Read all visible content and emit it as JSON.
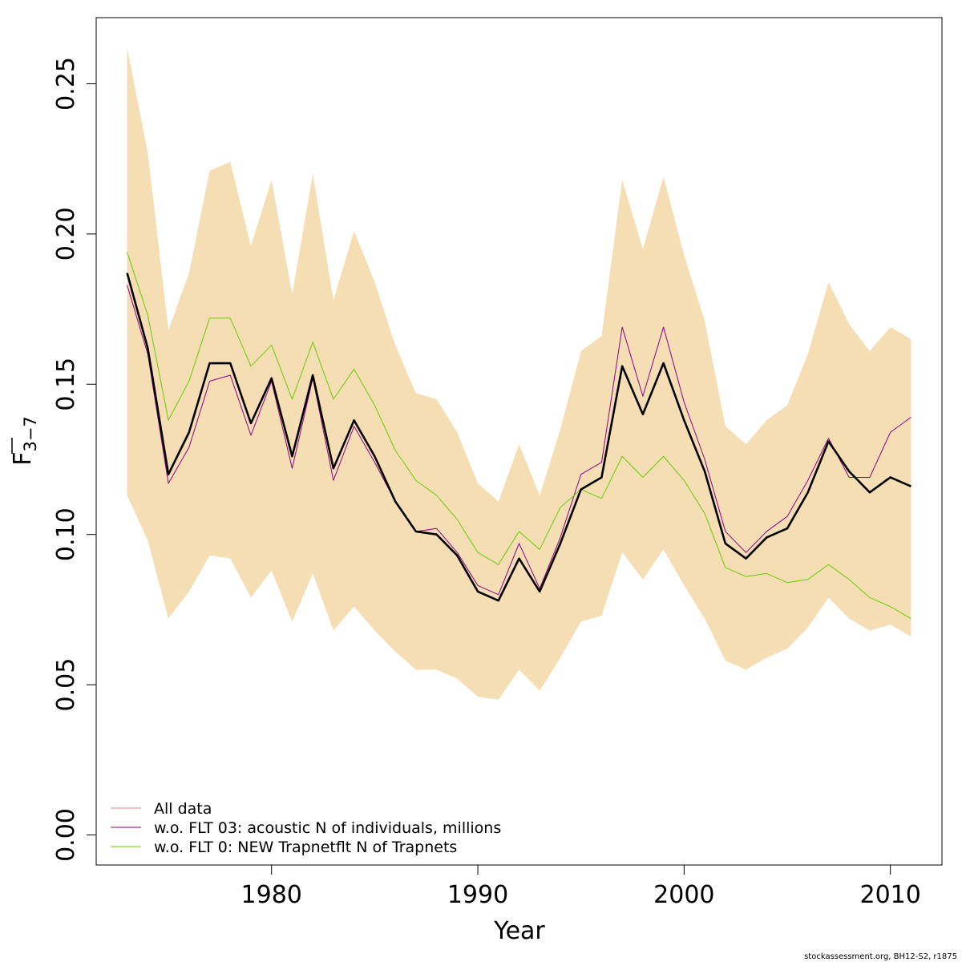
{
  "chart_data": {
    "type": "line",
    "xlabel": "Year",
    "ylabel_main": "F",
    "ylabel_sub": "3−7",
    "xlim": [
      1971.5,
      2012.5
    ],
    "ylim": [
      -0.01,
      0.272
    ],
    "x_ticks": [
      1980,
      1990,
      2000,
      2010
    ],
    "y_ticks": [
      "0.00",
      "0.05",
      "0.10",
      "0.15",
      "0.20",
      "0.25"
    ],
    "grid": false,
    "legend_position": "bottom-left",
    "colors": {
      "band": "#f5deb3",
      "all_data": "#000000",
      "all_data_legend": "#f08080",
      "flt03": "#8b008b",
      "flt0": "#66cc00"
    },
    "x": [
      1973,
      1974,
      1975,
      1976,
      1977,
      1978,
      1979,
      1980,
      1981,
      1982,
      1983,
      1984,
      1985,
      1986,
      1987,
      1988,
      1989,
      1990,
      1991,
      1992,
      1993,
      1994,
      1995,
      1996,
      1997,
      1998,
      1999,
      2000,
      2001,
      2002,
      2003,
      2004,
      2005,
      2006,
      2007,
      2008,
      2009,
      2010,
      2011
    ],
    "band_upper": [
      0.262,
      0.227,
      0.168,
      0.187,
      0.221,
      0.224,
      0.196,
      0.218,
      0.18,
      0.22,
      0.178,
      0.201,
      0.184,
      0.163,
      0.147,
      0.145,
      0.134,
      0.117,
      0.111,
      0.13,
      0.113,
      0.135,
      0.161,
      0.166,
      0.218,
      0.195,
      0.219,
      0.193,
      0.171,
      0.136,
      0.13,
      0.138,
      0.143,
      0.16,
      0.184,
      0.17,
      0.161,
      0.169,
      0.165
    ],
    "band_lower": [
      0.113,
      0.098,
      0.072,
      0.081,
      0.093,
      0.092,
      0.079,
      0.088,
      0.071,
      0.087,
      0.068,
      0.076,
      0.068,
      0.061,
      0.055,
      0.055,
      0.052,
      0.046,
      0.045,
      0.055,
      0.048,
      0.059,
      0.071,
      0.073,
      0.094,
      0.085,
      0.095,
      0.083,
      0.072,
      0.058,
      0.055,
      0.059,
      0.062,
      0.069,
      0.079,
      0.072,
      0.068,
      0.07,
      0.066
    ],
    "series": [
      {
        "name": "All data",
        "values": [
          0.187,
          0.162,
          0.12,
          0.134,
          0.157,
          0.157,
          0.137,
          0.152,
          0.126,
          0.153,
          0.122,
          0.138,
          0.126,
          0.111,
          0.101,
          0.1,
          0.093,
          0.081,
          0.078,
          0.092,
          0.081,
          0.097,
          0.115,
          0.119,
          0.156,
          0.14,
          0.157,
          0.138,
          0.121,
          0.097,
          0.092,
          0.099,
          0.102,
          0.114,
          0.131,
          0.121,
          0.114,
          0.119,
          0.116
        ]
      },
      {
        "name": "w.o. FLT 03:   acoustic   N of individuals, millions",
        "values": [
          0.183,
          0.16,
          0.117,
          0.129,
          0.151,
          0.153,
          0.133,
          0.151,
          0.122,
          0.152,
          0.118,
          0.136,
          0.124,
          0.111,
          0.101,
          0.102,
          0.094,
          0.083,
          0.08,
          0.097,
          0.082,
          0.099,
          0.12,
          0.124,
          0.169,
          0.146,
          0.169,
          0.144,
          0.125,
          0.101,
          0.094,
          0.101,
          0.106,
          0.118,
          0.132,
          0.119,
          0.119,
          0.134,
          0.139
        ]
      },
      {
        "name": "w.o. FLT 0: NEW Trapnetflt    N of Trapnets",
        "values": [
          0.194,
          0.173,
          0.138,
          0.151,
          0.172,
          0.172,
          0.156,
          0.163,
          0.145,
          0.164,
          0.145,
          0.155,
          0.143,
          0.128,
          0.118,
          0.113,
          0.105,
          0.094,
          0.09,
          0.101,
          0.095,
          0.109,
          0.115,
          0.112,
          0.126,
          0.119,
          0.126,
          0.118,
          0.107,
          0.089,
          0.086,
          0.087,
          0.084,
          0.085,
          0.09,
          0.085,
          0.079,
          0.076,
          0.072
        ]
      }
    ]
  },
  "footer_text": "stockassessment.org, BH12-S2, r1875"
}
